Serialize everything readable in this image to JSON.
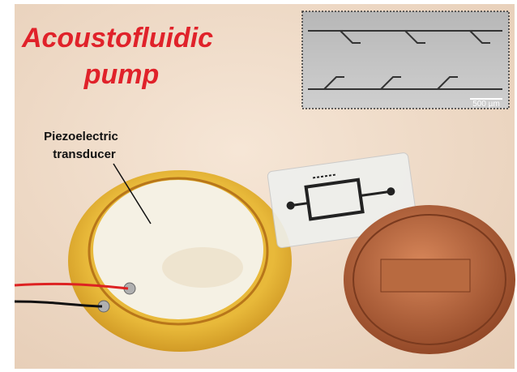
{
  "title": {
    "lines": [
      "Acoustofluidic",
      "pump"
    ]
  },
  "label": {
    "lines": [
      "Piezoelectric",
      "transducer"
    ]
  },
  "inset": {
    "scale_bar": "500 µm"
  }
}
